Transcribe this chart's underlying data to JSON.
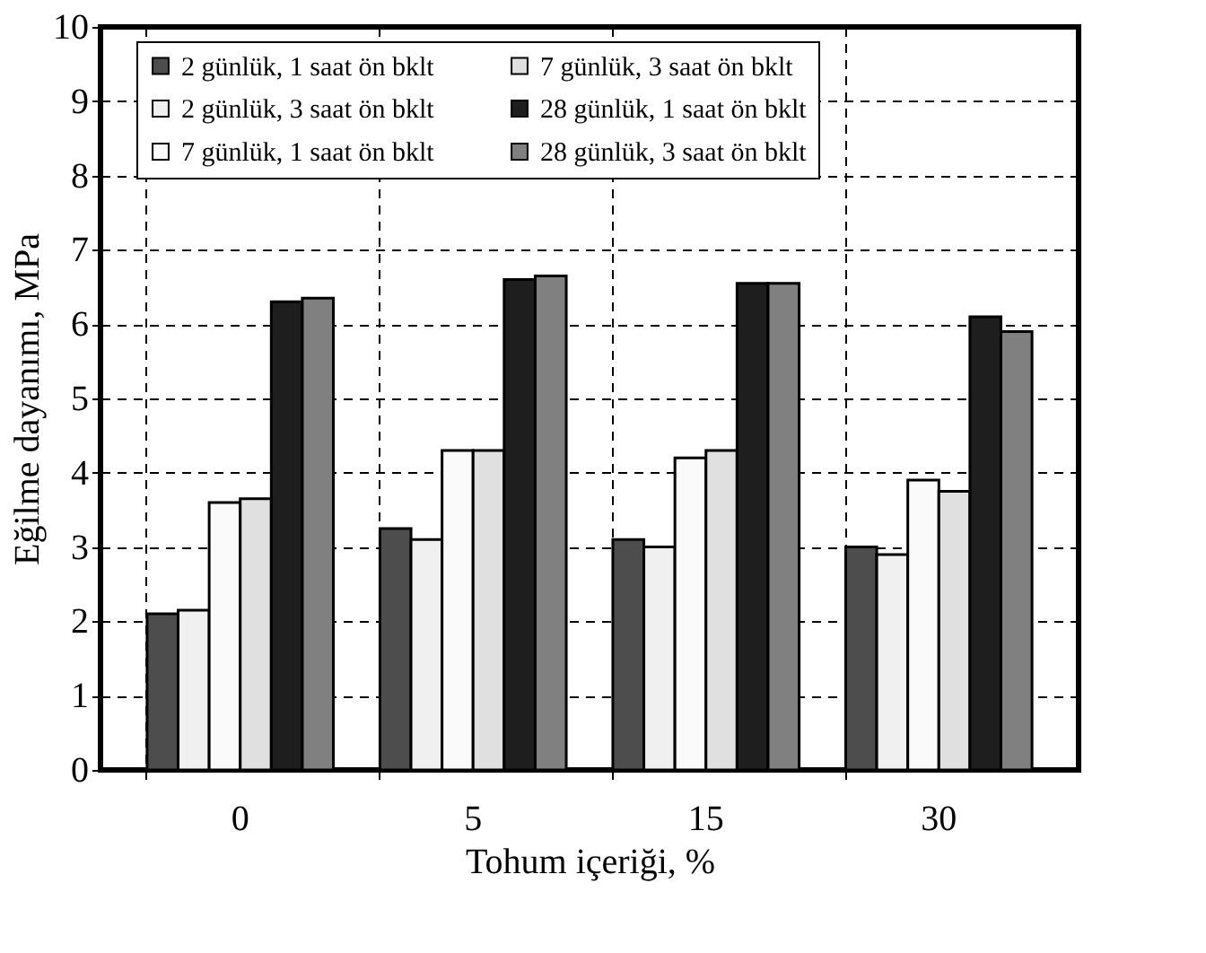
{
  "chart_data": {
    "type": "bar",
    "xlabel": "Tohum içeriği, %",
    "ylabel": "Eğilme dayanımı, MPa",
    "categories": [
      "0",
      "5",
      "15",
      "30"
    ],
    "series": [
      {
        "name": "2 günlük, 1 saat ön bklt",
        "color": "#4d4d4d",
        "values": [
          2.1,
          3.25,
          3.1,
          3.0
        ]
      },
      {
        "name": "2 günlük, 3 saat ön bklt",
        "color": "#f0f0f0",
        "values": [
          2.15,
          3.1,
          3.0,
          2.9
        ]
      },
      {
        "name": "7 günlük, 1 saat ön bklt",
        "color": "#fafafa",
        "values": [
          3.6,
          4.3,
          4.2,
          3.9
        ]
      },
      {
        "name": "7 günlük, 3 saat ön bklt",
        "color": "#e0e0e0",
        "values": [
          3.65,
          4.3,
          4.3,
          3.75
        ]
      },
      {
        "name": "28 günlük, 1 saat ön bklt",
        "color": "#1e1e1e",
        "values": [
          6.3,
          6.6,
          6.55,
          6.1
        ]
      },
      {
        "name": "28 günlük, 3 saat ön bklt",
        "color": "#808080",
        "values": [
          6.35,
          6.65,
          6.55,
          5.9
        ]
      }
    ],
    "ylim": [
      0,
      10
    ],
    "yticks": [
      0,
      1,
      2,
      3,
      4,
      5,
      6,
      7,
      8,
      9,
      10
    ],
    "grid": true,
    "legend": "top"
  }
}
